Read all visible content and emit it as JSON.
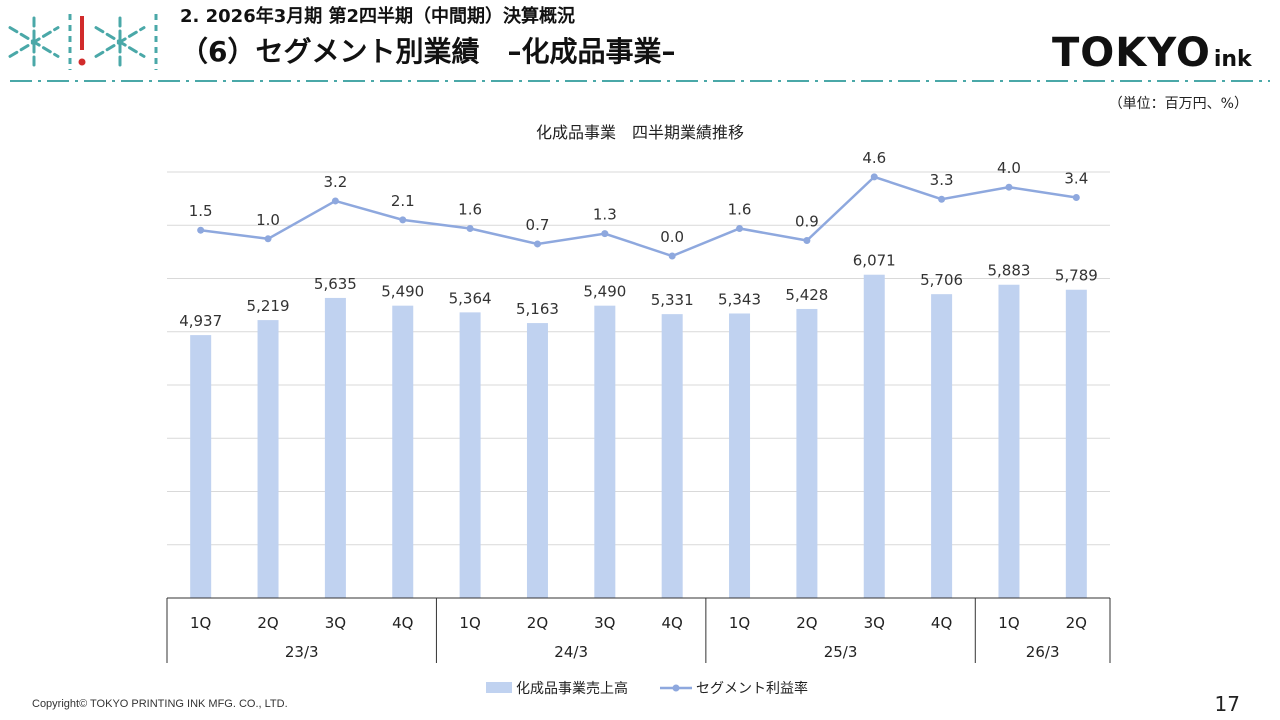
{
  "header": {
    "subtitle": "2. 2026年3月期 第2四半期（中間期）決算概況",
    "title": "（6）セグメント別業績　–化成品事業–",
    "logo_main": "TOKYO",
    "logo_sub": "ink",
    "unit": "（単位：百万円、%）"
  },
  "footer": {
    "copyright": "Copyright© TOKYO PRINTING INK MFG. CO., LTD.",
    "page": "17"
  },
  "colors": {
    "bar": "#c0d2f0",
    "line": "#8ea8de",
    "accent_teal": "#4aa8a8",
    "accent_red": "#d12b2b",
    "grid": "#d9d9d9"
  },
  "chart_data": {
    "type": "bar",
    "title": "化成品事業　四半期業績推移",
    "categories": [
      "1Q",
      "2Q",
      "3Q",
      "4Q",
      "1Q",
      "2Q",
      "3Q",
      "4Q",
      "1Q",
      "2Q",
      "3Q",
      "4Q",
      "1Q",
      "2Q"
    ],
    "groups": [
      {
        "label": "23/3",
        "count": 4
      },
      {
        "label": "24/3",
        "count": 4
      },
      {
        "label": "25/3",
        "count": 4
      },
      {
        "label": "26/3",
        "count": 2
      }
    ],
    "series": [
      {
        "name": "化成品事業売上高",
        "type": "bar",
        "values": [
          4937,
          5219,
          5635,
          5490,
          5364,
          5163,
          5490,
          5331,
          5343,
          5428,
          6071,
          5706,
          5883,
          5789
        ],
        "labels": [
          "4,937",
          "5,219",
          "5,635",
          "5,490",
          "5,364",
          "5,163",
          "5,490",
          "5,331",
          "5,343",
          "5,428",
          "6,071",
          "5,706",
          "5,883",
          "5,789"
        ]
      },
      {
        "name": "セグメント利益率",
        "type": "line",
        "values": [
          1.5,
          1.0,
          3.2,
          2.1,
          1.6,
          0.7,
          1.3,
          0.0,
          1.6,
          0.9,
          4.6,
          3.3,
          4.0,
          3.4
        ],
        "labels": [
          "1.5",
          "1.0",
          "3.2",
          "2.1",
          "1.6",
          "0.7",
          "1.3",
          "0.0",
          "1.6",
          "0.9",
          "4.6",
          "3.3",
          "4.0",
          "3.4"
        ]
      }
    ],
    "legend_position": "bottom",
    "grid": true
  }
}
